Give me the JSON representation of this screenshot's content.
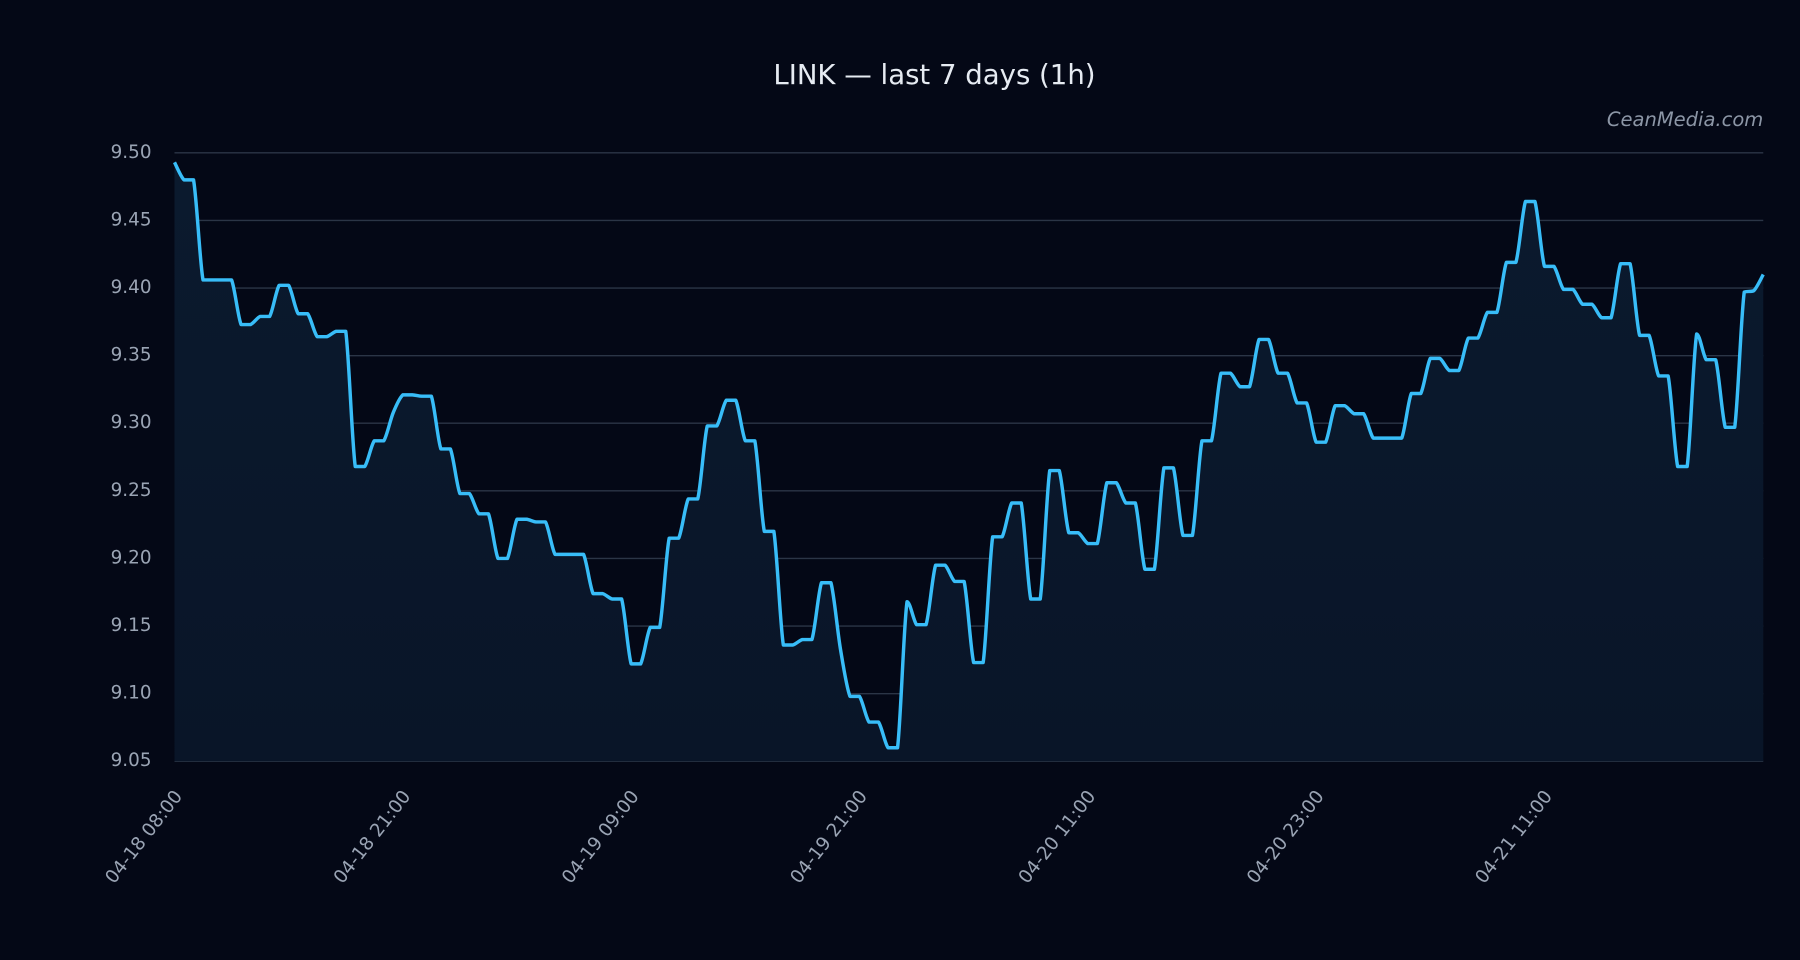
{
  "chart_data": {
    "type": "line",
    "title": "LINK — last 7 days (1h)",
    "watermark": "CeanMedia.com",
    "categories": [
      "04-18 08:00",
      null,
      null,
      null,
      null,
      null,
      null,
      null,
      null,
      null,
      null,
      null,
      null,
      null,
      null,
      null,
      null,
      null,
      null,
      null,
      null,
      null,
      null,
      null,
      "04-18 21:00",
      null,
      null,
      null,
      null,
      null,
      null,
      null,
      null,
      null,
      null,
      null,
      null,
      null,
      null,
      null,
      null,
      null,
      null,
      null,
      null,
      null,
      null,
      null,
      "04-19 09:00",
      null,
      null,
      null,
      null,
      null,
      null,
      null,
      null,
      null,
      null,
      null,
      null,
      null,
      null,
      null,
      null,
      null,
      null,
      null,
      null,
      null,
      null,
      null,
      "04-19 21:00",
      null,
      null,
      null,
      null,
      null,
      null,
      null,
      null,
      null,
      null,
      null,
      null,
      null,
      null,
      null,
      null,
      null,
      null,
      null,
      null,
      null,
      null,
      null,
      "04-20 11:00",
      null,
      null,
      null,
      null,
      null,
      null,
      null,
      null,
      null,
      null,
      null,
      null,
      null,
      null,
      null,
      null,
      null,
      null,
      null,
      null,
      null,
      null,
      null,
      "04-20 23:00",
      null,
      null,
      null,
      null,
      null,
      null,
      null,
      null,
      null,
      null,
      null,
      null,
      null,
      null,
      null,
      null,
      null,
      null,
      null,
      null,
      null,
      null,
      null,
      "04-21 11:00",
      null,
      null,
      null,
      null,
      null,
      null,
      null,
      null,
      null,
      null,
      null,
      null,
      null,
      null,
      null,
      null,
      null,
      null,
      null,
      null,
      null,
      null,
      null
    ],
    "series": [
      {
        "name": "LINK",
        "color": "#38bdf8",
        "values": [
          9.493,
          9.48,
          9.48,
          9.406,
          9.406,
          9.406,
          9.406,
          9.373,
          9.373,
          9.379,
          9.379,
          9.402,
          9.402,
          9.381,
          9.381,
          9.364,
          9.364,
          9.368,
          9.368,
          9.268,
          9.268,
          9.287,
          9.287,
          9.308,
          9.321,
          9.321,
          9.32,
          9.32,
          9.281,
          9.281,
          9.248,
          9.248,
          9.233,
          9.233,
          9.2,
          9.2,
          9.229,
          9.229,
          9.227,
          9.227,
          9.203,
          9.203,
          9.203,
          9.203,
          9.174,
          9.174,
          9.17,
          9.17,
          9.122,
          9.122,
          9.149,
          9.149,
          9.215,
          9.215,
          9.244,
          9.244,
          9.298,
          9.298,
          9.317,
          9.317,
          9.287,
          9.287,
          9.22,
          9.22,
          9.136,
          9.136,
          9.14,
          9.14,
          9.182,
          9.182,
          9.133,
          9.098,
          9.098,
          9.079,
          9.079,
          9.06,
          9.06,
          9.168,
          9.151,
          9.151,
          9.195,
          9.195,
          9.183,
          9.183,
          9.123,
          9.123,
          9.216,
          9.216,
          9.241,
          9.241,
          9.17,
          9.17,
          9.265,
          9.265,
          9.219,
          9.219,
          9.211,
          9.211,
          9.256,
          9.256,
          9.241,
          9.241,
          9.192,
          9.192,
          9.267,
          9.267,
          9.217,
          9.217,
          9.287,
          9.287,
          9.337,
          9.337,
          9.327,
          9.327,
          9.362,
          9.362,
          9.337,
          9.337,
          9.315,
          9.315,
          9.286,
          9.286,
          9.313,
          9.313,
          9.307,
          9.307,
          9.289,
          9.289,
          9.289,
          9.289,
          9.322,
          9.322,
          9.348,
          9.348,
          9.339,
          9.339,
          9.363,
          9.363,
          9.382,
          9.382,
          9.419,
          9.419,
          9.464,
          9.464,
          9.416,
          9.416,
          9.399,
          9.399,
          9.388,
          9.388,
          9.378,
          9.378,
          9.418,
          9.418,
          9.365,
          9.365,
          9.335,
          9.335,
          9.268,
          9.268,
          9.366,
          9.347,
          9.347,
          9.297,
          9.297,
          9.397,
          9.398,
          9.41
        ]
      }
    ],
    "ylim": [
      9.05,
      9.5
    ],
    "yticks": [
      9.05,
      {
        "value": 9.1,
        "label": "9.10"
      },
      9.15,
      {
        "value": 9.2,
        "label": "9.20"
      },
      9.25,
      {
        "value": 9.3,
        "label": "9.30"
      },
      9.35,
      {
        "value": 9.4,
        "label": "9.40"
      },
      9.45,
      {
        "value": 9.5,
        "label": "9.50"
      }
    ],
    "grid": true
  }
}
